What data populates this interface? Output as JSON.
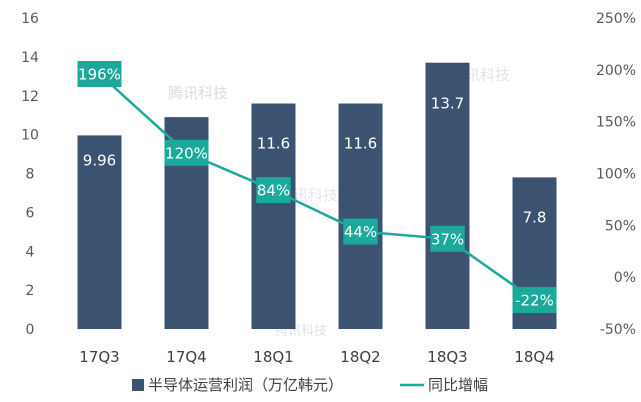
{
  "chart_data": {
    "type": "bar",
    "categories": [
      "17Q3",
      "17Q4",
      "18Q1",
      "18Q2",
      "18Q3",
      "18Q4"
    ],
    "series": [
      {
        "name": "半导体运营利润（万亿韩元）",
        "type": "bar",
        "axis": "left",
        "values": [
          9.96,
          10.9,
          11.6,
          11.6,
          13.7,
          7.8
        ],
        "labels": [
          "9.96",
          "10.9",
          "11.6",
          "11.6",
          "13.7",
          "7.8"
        ],
        "color": "#3b5270"
      },
      {
        "name": "同比增幅",
        "type": "line",
        "axis": "right",
        "values": [
          196,
          120,
          84,
          44,
          37,
          -22
        ],
        "labels": [
          "196%",
          "120%",
          "84%",
          "44%",
          "37%",
          "-22%"
        ],
        "color": "#1aa99b"
      }
    ],
    "left_axis": {
      "ylim": [
        0,
        16
      ],
      "ticks": [
        "0",
        "2",
        "4",
        "6",
        "8",
        "10",
        "12",
        "14",
        "16"
      ]
    },
    "right_axis": {
      "ylim": [
        -50,
        250
      ],
      "ticks": [
        "-50%",
        "0%",
        "50%",
        "100%",
        "150%",
        "200%",
        "250%"
      ]
    },
    "grid": false,
    "legend": "bottom",
    "watermark": "腾讯科技"
  }
}
